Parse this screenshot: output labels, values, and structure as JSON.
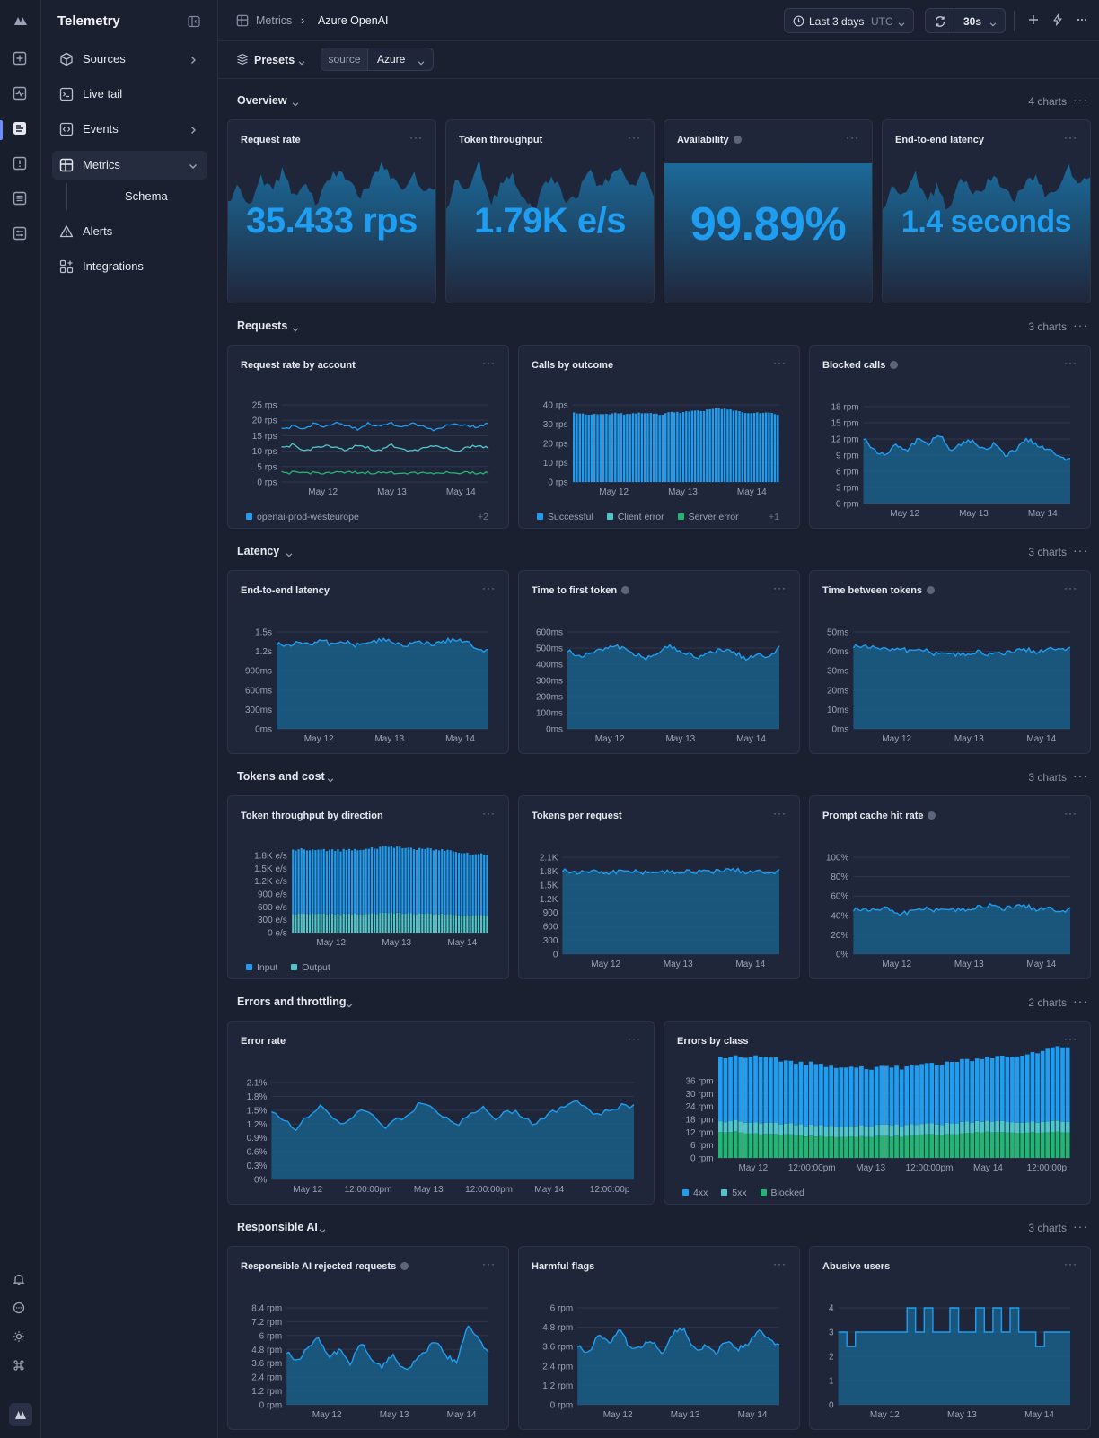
{
  "app": {
    "title": "Telemetry"
  },
  "sidebar": {
    "items": [
      {
        "label": "Sources",
        "icon": "cube-icon"
      },
      {
        "label": "Live tail",
        "icon": "terminal-icon"
      },
      {
        "label": "Events",
        "icon": "code-brackets-icon"
      },
      {
        "label": "Metrics",
        "icon": "grid-icon"
      },
      {
        "label": "Alerts",
        "icon": "warning-icon"
      },
      {
        "label": "Integrations",
        "icon": "integrations-icon"
      }
    ],
    "sub_item": "Schema"
  },
  "breadcrumb": {
    "parent": "Metrics",
    "current": "Azure OpenAI"
  },
  "toolbar": {
    "range": "Last 3 days",
    "timezone": "UTC",
    "interval": "30s"
  },
  "filters": {
    "presets_label": "Presets",
    "key": "source",
    "value": "Azure"
  },
  "colors": {
    "accent": "#1f9df0",
    "teal": "#4fc6c9",
    "green": "#22b573",
    "bg": "#1b2030",
    "card": "#20263a"
  },
  "sections": {
    "overview": {
      "title": "Overview",
      "count": "4 charts"
    },
    "requests": {
      "title": "Requests",
      "count": "3 charts"
    },
    "latency": {
      "title": "Latency",
      "count": "3 charts"
    },
    "tokens": {
      "title": "Tokens and cost",
      "count": "3 charts"
    },
    "errors": {
      "title": "Errors and throttling",
      "count": "2 charts"
    },
    "rai": {
      "title": "Responsible AI",
      "count": "3 charts"
    }
  },
  "cards": {
    "request_rate": {
      "title": "Request rate",
      "value": "35.433 rps"
    },
    "token_throughput": {
      "title": "Token throughput",
      "value": "1.79K e/s"
    },
    "availability": {
      "title": "Availability",
      "value": "99.89%"
    },
    "e2e_latency_stat": {
      "title": "End-to-end latency",
      "value": "1.4 seconds"
    },
    "rate_by_account": {
      "title": "Request rate by account",
      "legend": [
        "openai-prod-westeurope"
      ],
      "more": "+2"
    },
    "calls_by_outcome": {
      "title": "Calls by outcome",
      "legend": [
        "Successful",
        "Client error",
        "Server error"
      ],
      "more": "+1"
    },
    "blocked_calls": {
      "title": "Blocked calls"
    },
    "e2e_latency": {
      "title": "End-to-end latency"
    },
    "ttft": {
      "title": "Time to first token"
    },
    "tbt": {
      "title": "Time between tokens"
    },
    "token_dir": {
      "title": "Token throughput by direction",
      "legend": [
        "Input",
        "Output"
      ]
    },
    "tokens_per_req": {
      "title": "Tokens per request"
    },
    "cache_hit": {
      "title": "Prompt cache hit rate"
    },
    "error_rate": {
      "title": "Error rate"
    },
    "errors_by_class": {
      "title": "Errors by class",
      "legend": [
        "4xx",
        "5xx",
        "Blocked"
      ]
    },
    "rai_rejected": {
      "title": "Responsible AI rejected requests"
    },
    "harmful": {
      "title": "Harmful flags"
    },
    "abusive": {
      "title": "Abusive users"
    }
  },
  "chart_data": [
    {
      "id": "request_rate",
      "type": "area",
      "title": "Request rate",
      "series": [
        {
          "values": [
            31,
            33,
            30,
            34,
            33,
            35,
            32,
            34,
            31,
            33,
            35,
            34,
            32,
            33,
            36,
            34,
            33,
            35,
            32,
            33
          ]
        }
      ]
    },
    {
      "id": "token_throughput",
      "type": "area",
      "title": "Token throughput",
      "series": [
        {
          "values": [
            30,
            34,
            32,
            36,
            31,
            33,
            35,
            32,
            30,
            33,
            34,
            31,
            32,
            35,
            33,
            34,
            36,
            33,
            35,
            32
          ]
        }
      ]
    },
    {
      "id": "availability",
      "type": "area",
      "title": "Availability",
      "series": [
        {
          "values": [
            99.9,
            99.9,
            99.9,
            99.9,
            99.9,
            99.9,
            99.9,
            99.9,
            99.9,
            99.9
          ]
        }
      ]
    },
    {
      "id": "e2e_latency_stat",
      "type": "area",
      "title": "End-to-end latency",
      "series": [
        {
          "values": [
            1.2,
            1.4,
            1.3,
            1.5,
            1.3,
            1.4,
            1.2,
            1.5,
            1.4,
            1.3,
            1.5,
            1.4,
            1.3,
            1.4,
            1.5,
            1.3,
            1.4,
            1.6,
            1.4,
            1.5
          ]
        }
      ]
    },
    {
      "id": "rate_by_account",
      "type": "line",
      "title": "Request rate by account",
      "x_ticks": [
        "May 12",
        "May 13",
        "May 14"
      ],
      "y_ticks": [
        "25 rps",
        "20 rps",
        "15 rps",
        "10 rps",
        "5 rps",
        "0 rps"
      ],
      "ylim": [
        0,
        25
      ],
      "series": [
        {
          "name": "openai-prod-westeurope",
          "values": [
            17,
            18,
            17,
            19,
            18,
            19,
            18,
            17,
            19,
            18,
            19,
            18,
            19,
            18,
            17,
            18,
            19,
            18,
            18,
            19
          ]
        },
        {
          "values": [
            11,
            12,
            10,
            11,
            12,
            11,
            10,
            12,
            11,
            10,
            12,
            11,
            10,
            11,
            12,
            11,
            10,
            11,
            12,
            11
          ]
        },
        {
          "values": [
            3,
            3,
            3,
            3,
            3,
            3,
            3,
            3,
            3,
            3,
            3,
            3,
            3,
            3,
            3,
            3,
            3,
            3,
            3,
            3
          ]
        }
      ]
    },
    {
      "id": "calls_by_outcome",
      "type": "bar",
      "title": "Calls by outcome",
      "x_ticks": [
        "May 12",
        "May 13",
        "May 14"
      ],
      "y_ticks": [
        "40 rps",
        "30 rps",
        "20 rps",
        "10 rps",
        "0 rps"
      ],
      "ylim": [
        0,
        40
      ],
      "series": [
        {
          "name": "Successful",
          "values": [
            36,
            35,
            35,
            35,
            36,
            35,
            36,
            36,
            35,
            36,
            36,
            37,
            37,
            38,
            38,
            37,
            36,
            36,
            36,
            35
          ]
        }
      ]
    },
    {
      "id": "blocked_calls",
      "type": "area",
      "title": "Blocked calls",
      "x_ticks": [
        "May 12",
        "May 13",
        "May 14"
      ],
      "y_ticks": [
        "18 rpm",
        "15 rpm",
        "12 rpm",
        "9 rpm",
        "6 rpm",
        "3 rpm",
        "0 rpm"
      ],
      "ylim": [
        0,
        18
      ],
      "series": [
        {
          "values": [
            12,
            10,
            9,
            11,
            10,
            12,
            11,
            13,
            10,
            11,
            12,
            10,
            11,
            9,
            10,
            12,
            11,
            10,
            9,
            8
          ]
        }
      ]
    },
    {
      "id": "e2e_latency",
      "type": "area",
      "title": "End-to-end latency",
      "x_ticks": [
        "May 12",
        "May 13",
        "May 14"
      ],
      "y_ticks": [
        "1.5s",
        "1.2s",
        "900ms",
        "600ms",
        "300ms",
        "0ms"
      ],
      "ylim": [
        0,
        1.5
      ],
      "series": [
        {
          "values": [
            1.3,
            1.3,
            1.35,
            1.3,
            1.4,
            1.3,
            1.35,
            1.3,
            1.35,
            1.35,
            1.4,
            1.3,
            1.3,
            1.35,
            1.3,
            1.35,
            1.4,
            1.35,
            1.25,
            1.2
          ]
        }
      ]
    },
    {
      "id": "ttft",
      "type": "area",
      "title": "Time to first token",
      "x_ticks": [
        "May 12",
        "May 13",
        "May 14"
      ],
      "y_ticks": [
        "600ms",
        "500ms",
        "400ms",
        "300ms",
        "200ms",
        "100ms",
        "0ms"
      ],
      "ylim": [
        0,
        600
      ],
      "series": [
        {
          "values": [
            480,
            450,
            470,
            490,
            520,
            500,
            460,
            440,
            470,
            510,
            490,
            460,
            440,
            480,
            490,
            470,
            440,
            460,
            450,
            500
          ]
        }
      ]
    },
    {
      "id": "tbt",
      "type": "area",
      "title": "Time between tokens",
      "x_ticks": [
        "May 12",
        "May 13",
        "May 14"
      ],
      "y_ticks": [
        "50ms",
        "40ms",
        "30ms",
        "20ms",
        "10ms",
        "0ms"
      ],
      "ylim": [
        0,
        50
      ],
      "series": [
        {
          "values": [
            42,
            43,
            42,
            41,
            42,
            40,
            41,
            39,
            40,
            38,
            39,
            40,
            38,
            39,
            40,
            41,
            40,
            41,
            42,
            41
          ]
        }
      ]
    },
    {
      "id": "token_dir",
      "type": "bar",
      "title": "Token throughput by direction",
      "x_ticks": [
        "May 12",
        "May 13",
        "May 14"
      ],
      "y_ticks": [
        "1.8K e/s",
        "1.5K e/s",
        "1.2K e/s",
        "900 e/s",
        "600 e/s",
        "300 e/s",
        "0 e/s"
      ],
      "ylim": [
        0,
        1800
      ],
      "series": [
        {
          "name": "Input",
          "values": [
            1500,
            1500,
            1480,
            1490,
            1500,
            1490,
            1510,
            1520,
            1530,
            1540,
            1540,
            1530,
            1520,
            1510,
            1500,
            1490,
            1480,
            1450,
            1420,
            1430
          ]
        },
        {
          "name": "Output",
          "values": [
            430,
            440,
            430,
            430,
            440,
            430,
            440,
            440,
            450,
            450,
            460,
            450,
            440,
            440,
            430,
            430,
            420,
            410,
            400,
            400
          ]
        }
      ]
    },
    {
      "id": "tokens_per_req",
      "type": "area",
      "title": "Tokens per request",
      "x_ticks": [
        "May 12",
        "May 13",
        "May 14"
      ],
      "y_ticks": [
        "2.1K",
        "1.8K",
        "1.5K",
        "1.2K",
        "900",
        "600",
        "300",
        "0"
      ],
      "ylim": [
        0,
        2100
      ],
      "series": [
        {
          "values": [
            1800,
            1780,
            1790,
            1800,
            1770,
            1800,
            1790,
            1780,
            1800,
            1770,
            1790,
            1800,
            1780,
            1790,
            1810,
            1830,
            1790,
            1800,
            1780,
            1790
          ]
        }
      ]
    },
    {
      "id": "cache_hit",
      "type": "area",
      "title": "Prompt cache hit rate",
      "x_ticks": [
        "May 12",
        "May 13",
        "May 14"
      ],
      "y_ticks": [
        "100%",
        "80%",
        "60%",
        "40%",
        "20%",
        "0%"
      ],
      "ylim": [
        0,
        100
      ],
      "series": [
        {
          "values": [
            45,
            47,
            46,
            48,
            42,
            44,
            47,
            46,
            48,
            45,
            47,
            49,
            50,
            47,
            49,
            50,
            47,
            48,
            45,
            46
          ]
        }
      ]
    },
    {
      "id": "error_rate",
      "type": "area",
      "title": "Error rate",
      "x_ticks": [
        "May 12",
        "12:00:00pm",
        "May 13",
        "12:00:00pm",
        "May 14",
        "12:00:00p"
      ],
      "y_ticks": [
        "2.1%",
        "1.8%",
        "1.5%",
        "1.2%",
        "0.9%",
        "0.6%",
        "0.3%",
        "0%"
      ],
      "ylim": [
        0,
        2.1
      ],
      "series": [
        {
          "values": [
            1.5,
            1.3,
            1.1,
            1.4,
            1.6,
            1.3,
            1.2,
            1.5,
            1.4,
            1.1,
            1.3,
            1.4,
            1.7,
            1.5,
            1.3,
            1.2,
            1.4,
            1.6,
            1.3,
            1.5,
            1.4,
            1.2,
            1.4,
            1.5,
            1.7,
            1.6,
            1.4,
            1.5,
            1.6,
            1.6
          ]
        }
      ]
    },
    {
      "id": "errors_by_class",
      "type": "bar",
      "title": "Errors by class",
      "x_ticks": [
        "May 12",
        "12:00:00pm",
        "May 13",
        "12:00:00pm",
        "May 14",
        "12:00:00p"
      ],
      "y_ticks": [
        "36 rpm",
        "30 rpm",
        "24 rpm",
        "18 rpm",
        "12 rpm",
        "6 rpm",
        "0 rpm"
      ],
      "ylim": [
        0,
        36
      ],
      "series": [
        {
          "name": "4xx",
          "values": [
            30,
            30,
            31,
            30,
            29,
            29,
            28,
            28,
            27,
            27,
            27,
            28,
            28,
            29,
            29,
            30,
            31,
            32,
            34,
            35
          ]
        },
        {
          "name": "5xx",
          "values": [
            5,
            5,
            5,
            5,
            5,
            5,
            5,
            5,
            5,
            5,
            5,
            5,
            5,
            5,
            5,
            5,
            5,
            5,
            5,
            5
          ]
        },
        {
          "name": "Blocked",
          "values": [
            12,
            12,
            11,
            11,
            11,
            10,
            10,
            10,
            10,
            10,
            10,
            11,
            11,
            11,
            12,
            12,
            12,
            12,
            12,
            12
          ]
        }
      ]
    },
    {
      "id": "rai_rejected",
      "type": "area",
      "title": "Responsible AI rejected requests",
      "x_ticks": [
        "May 12",
        "May 13",
        "May 14"
      ],
      "y_ticks": [
        "8.4 rpm",
        "7.2 rpm",
        "6 rpm",
        "4.8 rpm",
        "3.6 rpm",
        "2.4 rpm",
        "1.2 rpm",
        "0 rpm"
      ],
      "ylim": [
        0,
        8.4
      ],
      "series": [
        {
          "values": [
            4.5,
            3.8,
            5.0,
            5.8,
            4.2,
            4.8,
            3.5,
            5.5,
            4.0,
            3.2,
            4.5,
            3.0,
            3.6,
            4.6,
            5.6,
            4.2,
            3.8,
            6.8,
            6.0,
            4.4
          ]
        }
      ]
    },
    {
      "id": "harmful",
      "type": "area",
      "title": "Harmful flags",
      "x_ticks": [
        "May 12",
        "May 13",
        "May 14"
      ],
      "y_ticks": [
        "6 rpm",
        "4.8 rpm",
        "3.6 rpm",
        "2.4 rpm",
        "1.2 rpm",
        "0 rpm"
      ],
      "ylim": [
        0,
        6
      ],
      "series": [
        {
          "values": [
            3.6,
            3.2,
            4.4,
            3.8,
            4.8,
            3.4,
            3.6,
            4.0,
            3.2,
            4.4,
            4.8,
            3.4,
            3.6,
            3.2,
            4.0,
            3.4,
            3.8,
            4.6,
            4.2,
            3.6
          ]
        }
      ]
    },
    {
      "id": "abusive",
      "type": "area",
      "title": "Abusive users",
      "x_ticks": [
        "May 12",
        "May 13",
        "May 14"
      ],
      "y_ticks": [
        "4",
        "3",
        "2",
        "1",
        "0"
      ],
      "ylim": [
        0,
        4
      ],
      "series": [
        {
          "values": [
            3,
            2.4,
            3,
            3,
            3,
            3,
            3,
            3,
            4,
            3,
            4,
            3,
            3,
            4,
            3,
            3,
            4,
            3,
            4,
            3,
            4,
            3,
            3,
            2.4,
            3,
            3,
            3,
            3
          ]
        }
      ]
    }
  ]
}
